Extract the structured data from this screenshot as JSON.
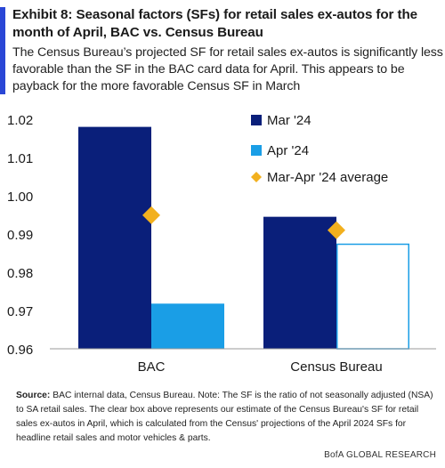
{
  "exhibit": {
    "title": "Exhibit 8: Seasonal factors (SFs) for retail sales ex-autos for the month of April, BAC vs. Census Bureau",
    "subtitle": "The Census Bureau’s projected SF for retail sales ex-autos is significantly less favorable than the SF in the BAC card data for April. This appears to be payback for the more favorable Census SF in March"
  },
  "chart_data": {
    "type": "bar",
    "categories": [
      "BAC",
      "Census Bureau"
    ],
    "series": [
      {
        "name": "Mar '24",
        "values": [
          1.018,
          0.9945
        ],
        "color": "#0a1f7a"
      },
      {
        "name": "Apr '24",
        "values": [
          0.9718,
          0.9875
        ],
        "color": "#1a9ee6",
        "note_second_value": "outlined (estimate)"
      },
      {
        "name": "Mar-Apr '24 average",
        "values": [
          0.9949,
          0.991
        ],
        "color": "#f2b01e",
        "marker": "diamond"
      }
    ],
    "ylim": [
      0.96,
      1.02
    ],
    "yticks": [
      "0.96",
      "0.97",
      "0.98",
      "0.99",
      "1.00",
      "1.01",
      "1.02"
    ],
    "grid": false,
    "legend_position": "top-right",
    "title": "",
    "xlabel": "",
    "ylabel": ""
  },
  "footer": {
    "source_label": "Source:",
    "source_text": "BAC internal data, Census Bureau. Note: The SF is the ratio of not seasonally adjusted (NSA) to SA retail sales. The clear box above represents our estimate of the Census Bureau's SF for retail sales ex-autos in April, which is calculated from the Census' projections of the April 2024 SFs for headline retail sales and motor vehicles & parts.",
    "brand": "BofA GLOBAL RESEARCH"
  }
}
